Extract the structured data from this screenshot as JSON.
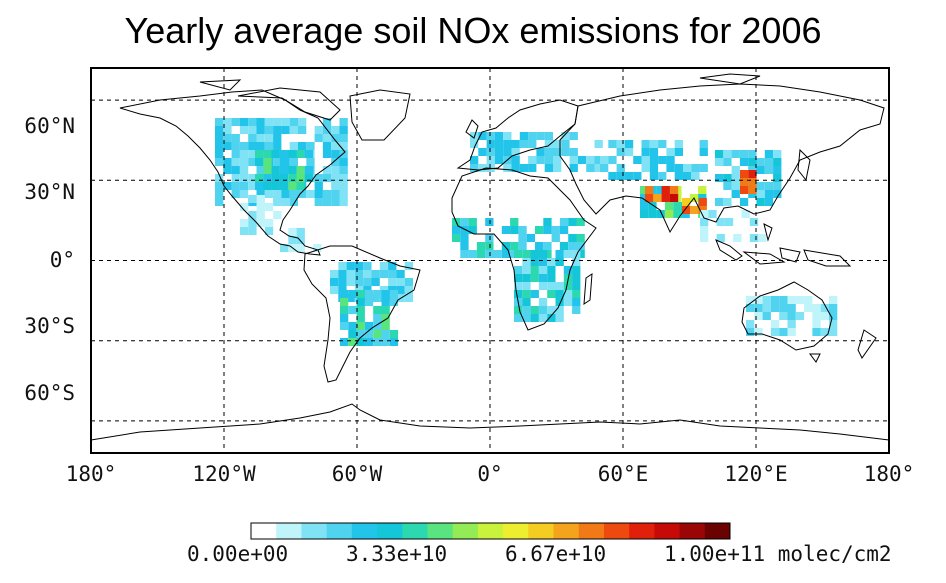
{
  "title": "Yearly average soil NOx emissions for 2006",
  "lat_labels": [
    "60°N",
    "30°N",
    "0°",
    "30°S",
    "60°S"
  ],
  "lon_labels": [
    "180°",
    "120°W",
    "60°W",
    "0°",
    "60°E",
    "120°E",
    "180°"
  ],
  "colorbar": {
    "colors": [
      "#ffffff",
      "#bff4fb",
      "#80e3f5",
      "#4fd3ef",
      "#22c4ea",
      "#14c6d8",
      "#2bd8b0",
      "#5ae480",
      "#93ec55",
      "#c8f23c",
      "#eeee30",
      "#f4cc22",
      "#f4a41c",
      "#f27a16",
      "#ee4a10",
      "#e1200c",
      "#c50a08",
      "#9a0606",
      "#6a0202"
    ],
    "tick_labels": [
      "0.00e+00",
      "3.33e+10",
      "6.67e+10",
      "1.00e+11 molec/cm2"
    ],
    "range": [
      0,
      100000000000.0
    ],
    "unit": "molec/cm2"
  }
}
